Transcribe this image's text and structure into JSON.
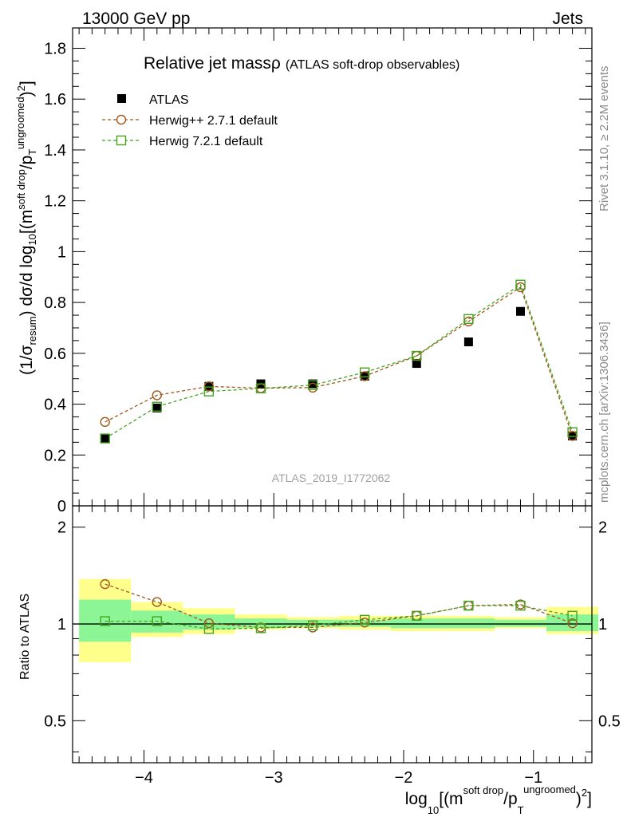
{
  "header": {
    "energy_label": "13000 GeV pp",
    "process_label": "Jets"
  },
  "side_labels": {
    "rivet": "Rivet 3.1.10, ≥ 2.2M events",
    "mcplots": "mcplots.cern.ch [arXiv:1306.3436]"
  },
  "watermark": "ATLAS_2019_I1772062",
  "chart_data": [
    {
      "type": "scatter",
      "title": "Relative jet massρ",
      "subtitle": "(ATLAS soft-drop observables)",
      "ylabel": "(1/σresum) dσ/d log10[(m^soft drop/pT^ungroomed)^2]",
      "xlim": [
        -4.55,
        -0.55
      ],
      "ylim": [
        0,
        1.88
      ],
      "y_ticks": [
        0,
        0.2,
        0.4,
        0.6,
        0.8,
        1,
        1.2,
        1.4,
        1.6,
        1.8
      ],
      "y_tick_labels": [
        "0",
        "0.2",
        "0.4",
        "0.6",
        "0.8",
        "1",
        "1.2",
        "1.4",
        "1.6",
        "1.8"
      ],
      "x": [
        -4.3,
        -3.9,
        -3.5,
        -3.1,
        -2.7,
        -2.3,
        -1.9,
        -1.5,
        -1.1,
        -0.7
      ],
      "series": [
        {
          "name": "ATLAS",
          "marker": "filled-square",
          "color": "#000000",
          "line": false,
          "values": [
            0.265,
            0.385,
            0.47,
            0.48,
            0.48,
            0.51,
            0.56,
            0.645,
            0.765,
            0.275
          ]
        },
        {
          "name": "Herwig++ 2.7.1 default",
          "marker": "open-circle",
          "color": "#a0581a",
          "line": true,
          "values": [
            0.33,
            0.435,
            0.47,
            0.463,
            0.465,
            0.51,
            0.59,
            0.725,
            0.86,
            0.275
          ]
        },
        {
          "name": "Herwig 7.2.1 default",
          "marker": "open-square",
          "color": "#44a320",
          "line": true,
          "values": [
            0.265,
            0.39,
            0.45,
            0.462,
            0.475,
            0.525,
            0.59,
            0.735,
            0.87,
            0.29
          ]
        }
      ],
      "legend_position": "top-left"
    },
    {
      "type": "scatter",
      "ylabel": "Ratio to ATLAS",
      "xlabel": "log10[(m^soft drop/pT^ungroomed)^2]",
      "xlim": [
        -4.55,
        -0.55
      ],
      "ylim": [
        0.37,
        2.33
      ],
      "y_ticks": [
        0.5,
        1,
        2
      ],
      "y_tick_labels": [
        "0.5",
        "1",
        "2"
      ],
      "x_ticks": [
        -4,
        -3,
        -2,
        -1
      ],
      "x_tick_labels": [
        "−4",
        "−3",
        "−2",
        "−1"
      ],
      "reference_line": 1,
      "bin_edges": [
        -4.5,
        -4.1,
        -3.7,
        -3.3,
        -2.9,
        -2.5,
        -2.1,
        -1.7,
        -1.3,
        -0.9,
        -0.5
      ],
      "uncertainty_yellow": [
        [
          0.76,
          1.38
        ],
        [
          0.91,
          1.17
        ],
        [
          0.93,
          1.12
        ],
        [
          0.96,
          1.07
        ],
        [
          0.97,
          1.05
        ],
        [
          0.96,
          1.06
        ],
        [
          0.95,
          1.06
        ],
        [
          0.95,
          1.06
        ],
        [
          0.97,
          1.05
        ],
        [
          0.93,
          1.13
        ]
      ],
      "uncertainty_green": [
        [
          0.88,
          1.19
        ],
        [
          0.94,
          1.1
        ],
        [
          0.96,
          1.07
        ],
        [
          0.97,
          1.04
        ],
        [
          0.98,
          1.03
        ],
        [
          0.98,
          1.03
        ],
        [
          0.97,
          1.04
        ],
        [
          0.97,
          1.04
        ],
        [
          0.98,
          1.03
        ],
        [
          0.95,
          1.07
        ]
      ],
      "x": [
        -4.3,
        -3.9,
        -3.5,
        -3.1,
        -2.7,
        -2.3,
        -1.9,
        -1.5,
        -1.1,
        -0.7
      ],
      "series": [
        {
          "name": "Herwig++ 2.7.1 default",
          "marker": "open-circle",
          "color": "#a0581a",
          "values": [
            1.33,
            1.17,
            1.005,
            0.975,
            0.975,
            1.01,
            1.06,
            1.14,
            1.15,
            1.005
          ]
        },
        {
          "name": "Herwig 7.2.1 default",
          "marker": "open-square",
          "color": "#44a320",
          "values": [
            1.02,
            1.02,
            0.965,
            0.97,
            0.99,
            1.03,
            1.06,
            1.14,
            1.14,
            1.06
          ]
        }
      ]
    }
  ]
}
